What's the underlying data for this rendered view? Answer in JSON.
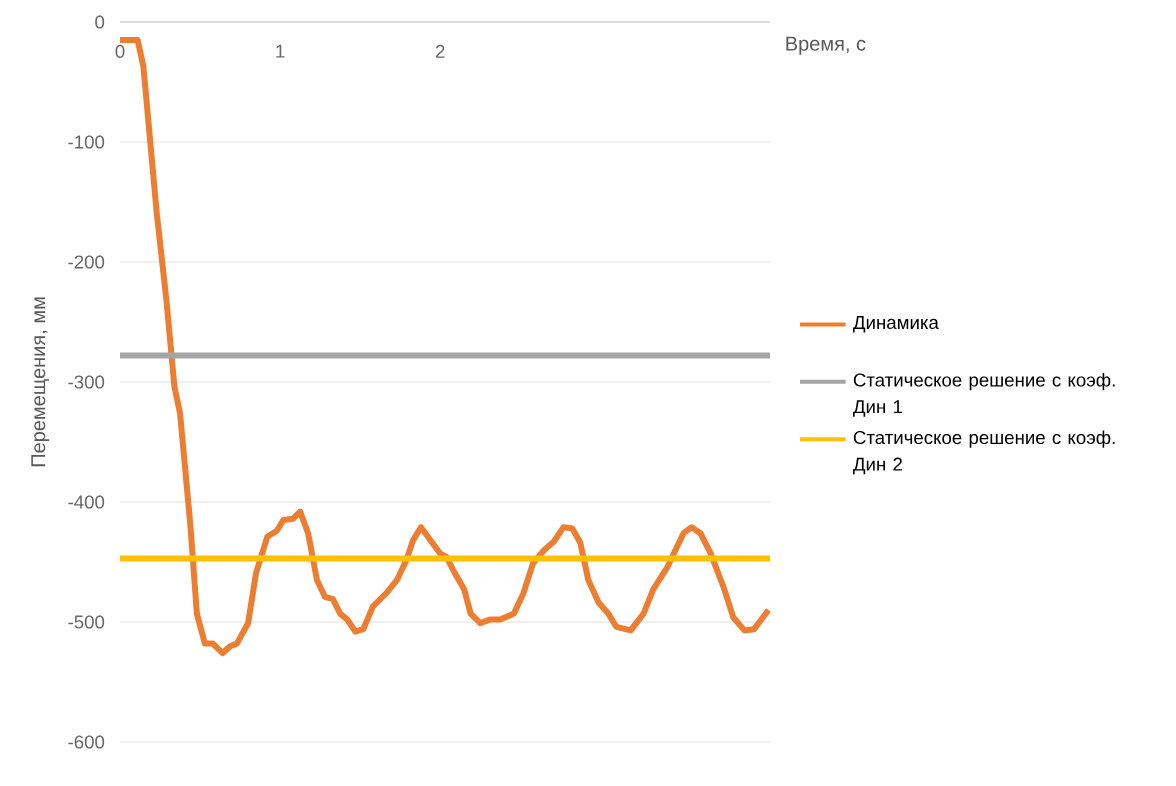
{
  "chart_data": {
    "type": "line",
    "xlabel": "Время, с",
    "ylabel": "Перемещения, мм",
    "xlim": [
      0,
      4.06
    ],
    "ylim": [
      -600,
      0
    ],
    "xticks": [
      0,
      1,
      2
    ],
    "yticks": [
      0,
      -100,
      -200,
      -300,
      -400,
      -500,
      -600
    ],
    "grid": "y",
    "legend": "right",
    "marker": "none",
    "line_style": "solid",
    "series": [
      {
        "name": "Динамика",
        "color": "#ed7d31",
        "x": [
          0,
          0.11,
          0.146,
          0.23,
          0.29,
          0.34,
          0.375,
          0.44,
          0.48,
          0.53,
          0.58,
          0.64,
          0.69,
          0.73,
          0.8,
          0.85,
          0.92,
          0.98,
          1.02,
          1.08,
          1.125,
          1.175,
          1.23,
          1.28,
          1.33,
          1.375,
          1.42,
          1.47,
          1.52,
          1.58,
          1.67,
          1.73,
          1.79,
          1.83,
          1.88,
          1.94,
          2.0,
          2.04,
          2.09,
          2.15,
          2.19,
          2.25,
          2.31,
          2.375,
          2.46,
          2.52,
          2.58,
          2.65,
          2.71,
          2.77,
          2.825,
          2.875,
          2.925,
          2.99,
          3.05,
          3.1,
          3.19,
          3.27,
          3.33,
          3.42,
          3.48,
          3.52,
          3.57,
          3.625,
          3.69,
          3.77,
          3.83,
          3.9,
          3.96,
          4.05
        ],
        "values": [
          -15,
          -15,
          -37,
          -160,
          -232,
          -304,
          -326,
          -420,
          -493,
          -518,
          -518,
          -526,
          -520,
          -518,
          -501,
          -459,
          -429,
          -424,
          -415,
          -414,
          -408,
          -426,
          -465,
          -479,
          -481,
          -493,
          -498,
          -508,
          -506,
          -487,
          -475,
          -465,
          -448,
          -432,
          -421,
          -432,
          -443,
          -446,
          -459,
          -473,
          -493,
          -501,
          -498,
          -498,
          -493,
          -476,
          -451,
          -440,
          -433,
          -421,
          -422,
          -434,
          -465,
          -484,
          -493,
          -504,
          -507,
          -493,
          -473,
          -454,
          -437,
          -426,
          -421,
          -426,
          -443,
          -471,
          -496,
          -507,
          -506,
          -490
        ]
      },
      {
        "name": "Статическое решение с коэф. Дин 1",
        "color": "#a5a5a5",
        "x": [
          0,
          4.06
        ],
        "values": [
          -278,
          -278
        ]
      },
      {
        "name": "Статическое решение с коэф. Дин 2",
        "color": "#ffc000",
        "x": [
          0,
          4.06
        ],
        "values": [
          -447,
          -447
        ]
      }
    ]
  }
}
